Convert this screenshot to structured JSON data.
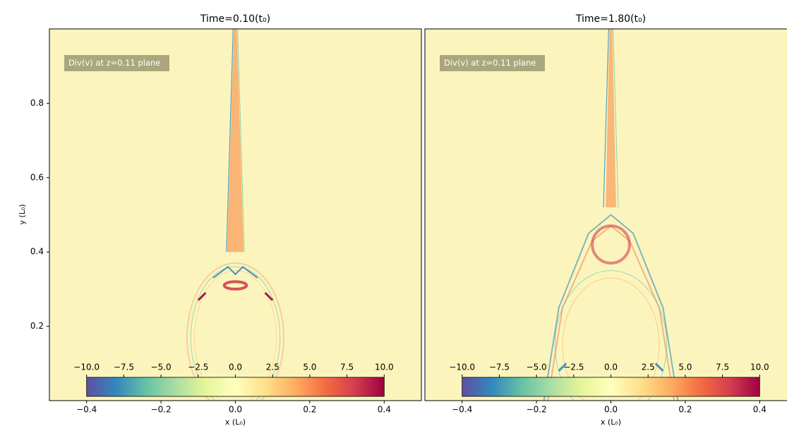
{
  "chart_data": [
    {
      "type": "heatmap",
      "title": "Time=0.10(t₀)",
      "annotation": "Div(v) at z=0.11 plane",
      "xlabel": "x (L₀)",
      "ylabel": "y (L₀)",
      "xlim": [
        -0.5,
        0.5
      ],
      "xticks": [
        {
          "value": -0.4,
          "label": "−0.4"
        },
        {
          "value": -0.2,
          "label": "−0.2"
        },
        {
          "value": 0,
          "label": "0.0"
        },
        0.2,
        0.4
      ],
      "ylim": [
        0,
        1
      ],
      "yticks": [
        0.2,
        0.4,
        0.6,
        0.8
      ],
      "colorbar": {
        "clim": [
          -10,
          10
        ],
        "ticks": [
          {
            "value": -10,
            "label": "−10.0"
          },
          {
            "value": -7.5,
            "label": "−7.5"
          },
          {
            "value": -5,
            "label": "−5.0"
          },
          {
            "value": -2.5,
            "label": "−2.5"
          },
          {
            "value": 0,
            "label": "0.0"
          },
          2.5,
          {
            "value": 5,
            "label": "5.0"
          },
          7.5,
          {
            "value": 10,
            "label": "10.0"
          }
        ],
        "colormap": [
          "#5e4fa2",
          "#3288bd",
          "#66c2a5",
          "#abdda4",
          "#e6f598",
          "#ffffbf",
          "#fee08b",
          "#fdae61",
          "#f46d43",
          "#d53e4f",
          "#9e0142"
        ]
      }
    },
    {
      "type": "heatmap",
      "title": "Time=1.80(t₀)",
      "annotation": "Div(v) at z=0.11 plane",
      "xlabel": "x (L₀)",
      "xlim": [
        -0.5,
        0.5
      ],
      "xticks": [
        {
          "value": -0.4,
          "label": "−0.4"
        },
        {
          "value": -0.2,
          "label": "−0.2"
        },
        {
          "value": 0,
          "label": "0.0"
        },
        0.2,
        0.4
      ],
      "ylim": [
        0,
        1
      ],
      "colorbar": {
        "clim": [
          -10,
          10
        ],
        "ticks": [
          {
            "value": -10,
            "label": "−10.0"
          },
          {
            "value": -7.5,
            "label": "−7.5"
          },
          {
            "value": -5,
            "label": "−5.0"
          },
          {
            "value": -2.5,
            "label": "−2.5"
          },
          {
            "value": 0,
            "label": "0.0"
          },
          2.5,
          {
            "value": 5,
            "label": "5.0"
          },
          7.5,
          {
            "value": 10,
            "label": "10.0"
          }
        ],
        "colormap": [
          "#5e4fa2",
          "#3288bd",
          "#66c2a5",
          "#abdda4",
          "#e6f598",
          "#ffffbf",
          "#fee08b",
          "#fdae61",
          "#f46d43",
          "#d53e4f",
          "#9e0142"
        ]
      }
    }
  ]
}
